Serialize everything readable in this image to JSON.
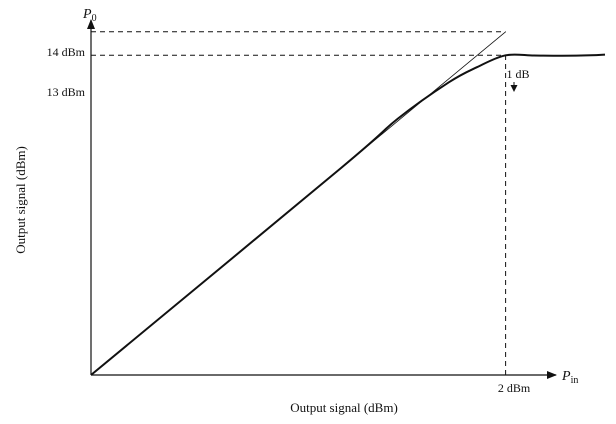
{
  "chart_data": {
    "type": "line",
    "title": "",
    "xlabel": "Output signal (dBm)",
    "ylabel": "Output signal (dBm)",
    "x_axis_symbol": {
      "base": "P",
      "sub": "in"
    },
    "y_axis_symbol": {
      "base": "P",
      "sub": "0"
    },
    "x_ticks": [
      {
        "value": 2,
        "label": "2 dBm"
      }
    ],
    "y_ticks": [
      {
        "value": 14,
        "label": "14 dBm"
      },
      {
        "value": 13,
        "label": "13 dBm"
      }
    ],
    "annotations": [
      {
        "text": "1 dB"
      }
    ],
    "grid": false,
    "series": [
      {
        "style": "thick-solid",
        "x": [
          -12.6,
          -3.8,
          -1.8,
          0.0,
          1.0,
          2.0,
          3.0,
          4.0,
          5.0,
          5.5
        ],
        "y": [
          -0.6,
          8.2,
          10.3,
          11.85,
          12.5,
          13.0,
          12.99,
          12.98,
          13.0,
          13.03
        ]
      },
      {
        "style": "thin-solid",
        "x": [
          -3.8,
          2.0
        ],
        "y": [
          8.2,
          14.0
        ]
      }
    ],
    "guides": [
      {
        "style": "dashed",
        "x": [
          -12.6,
          2.0
        ],
        "y": [
          14,
          14
        ]
      },
      {
        "style": "dashed",
        "x": [
          -12.6,
          2.0
        ],
        "y": [
          13,
          13
        ]
      },
      {
        "style": "dashed",
        "x": [
          2.0,
          2.0
        ],
        "y": [
          -0.6,
          13
        ]
      }
    ],
    "xlim": [
      -12.6,
      5.5
    ],
    "ylim": [
      -0.6,
      14.8
    ]
  }
}
